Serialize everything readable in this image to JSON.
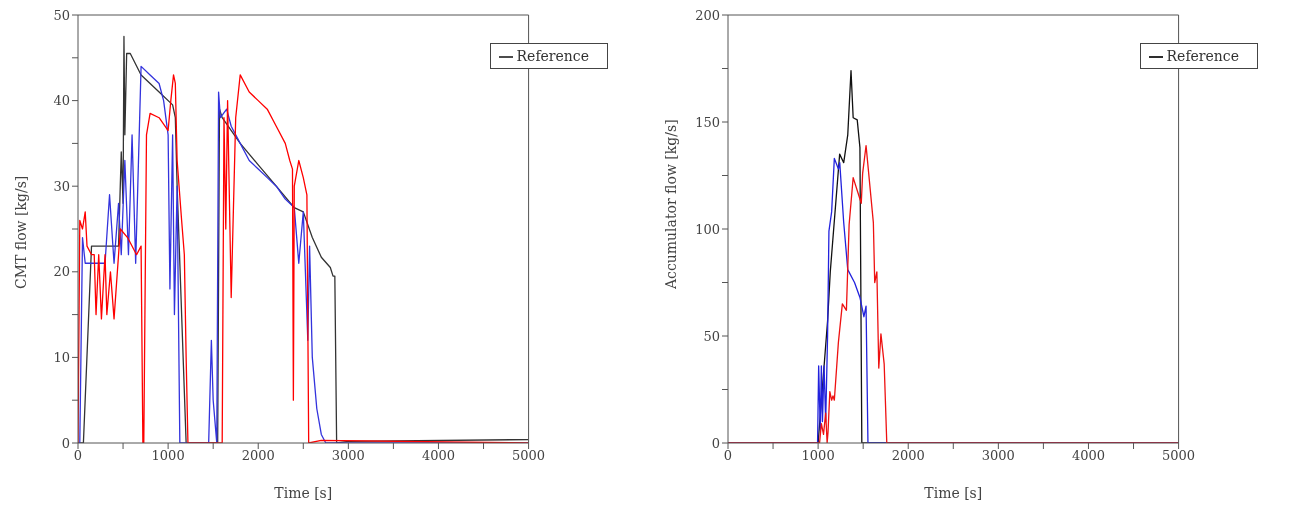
{
  "chart_data": [
    {
      "type": "line",
      "xlabel": "Time [s]",
      "ylabel": "CMT flow [kg/s]",
      "xlim": [
        0,
        5000
      ],
      "ylim": [
        0,
        50
      ],
      "xticks": [
        0,
        {
          "value": 500,
          "label": null
        },
        1000,
        {
          "value": 1500,
          "label": null
        },
        2000,
        {
          "value": 2500,
          "label": null
        },
        3000,
        {
          "value": 3500,
          "label": null
        },
        4000,
        {
          "value": 4500,
          "label": null
        },
        5000
      ],
      "yticks": [
        0,
        {
          "value": 5,
          "label": null
        },
        10,
        {
          "value": 15,
          "label": null
        },
        20,
        {
          "value": 25,
          "label": null
        },
        30,
        {
          "value": 35,
          "label": null
        },
        40,
        {
          "value": 45,
          "label": null
        },
        50
      ],
      "legend": "top right",
      "marker": "none",
      "line_style": "solid",
      "series": [
        {
          "name": "Reference",
          "color": "#333333",
          "x": [
            0,
            60,
            150,
            300,
            450,
            480,
            500,
            510,
            520,
            540,
            580,
            700,
            900,
            1050,
            1080,
            1100,
            1200,
            1550,
            1570,
            1600,
            1800,
            2000,
            2200,
            2400,
            2500,
            2600,
            2700,
            2800,
            2830,
            2850,
            2870,
            3000,
            5000
          ],
          "values": [
            0,
            0,
            23,
            23,
            23,
            34,
            28,
            47.5,
            36,
            45.5,
            45.5,
            43,
            41,
            39.5,
            38,
            30,
            0,
            0,
            39,
            38,
            35,
            32.5,
            30,
            27.5,
            27,
            24,
            21.7,
            20.5,
            19.5,
            19.5,
            0,
            0.2,
            0.4
          ]
        },
        {
          "color": "#3333dd",
          "x": [
            0,
            20,
            50,
            80,
            300,
            350,
            400,
            450,
            480,
            520,
            560,
            600,
            640,
            700,
            800,
            900,
            950,
            1000,
            1020,
            1050,
            1070,
            1100,
            1130,
            1450,
            1480,
            1500,
            1540,
            1560,
            1580,
            1650,
            1700,
            1800,
            1900,
            2000,
            2100,
            2200,
            2300,
            2400,
            2450,
            2500,
            2550,
            2570,
            2600,
            2650,
            2700,
            2750,
            5000
          ],
          "values": [
            0,
            0,
            24,
            21,
            21,
            29,
            21,
            28,
            22,
            33,
            22,
            36,
            21,
            44,
            43,
            42,
            40,
            36,
            18,
            36,
            15,
            30,
            0,
            0,
            12,
            5,
            0,
            41,
            38,
            39,
            37,
            35,
            33,
            32,
            31,
            30,
            28.5,
            27.5,
            21,
            27,
            12,
            23,
            10,
            4,
            1,
            0,
            0
          ]
        },
        {
          "color": "#ff0000",
          "x": [
            0,
            20,
            50,
            80,
            100,
            150,
            180,
            200,
            230,
            260,
            300,
            320,
            360,
            400,
            450,
            470,
            550,
            650,
            700,
            720,
            730,
            760,
            800,
            900,
            1000,
            1030,
            1060,
            1080,
            1100,
            1150,
            1180,
            1200,
            1220,
            1600,
            1620,
            1640,
            1660,
            1700,
            1750,
            1800,
            1900,
            2000,
            2100,
            2200,
            2300,
            2350,
            2380,
            2390,
            2400,
            2450,
            2500,
            2540,
            2560,
            2700,
            5000
          ],
          "values": [
            0,
            26,
            25,
            27,
            23,
            22,
            22,
            15,
            22,
            14.5,
            22,
            15,
            20,
            14.5,
            22,
            25,
            24,
            22,
            23,
            0,
            0,
            36,
            38.5,
            38,
            36.5,
            40,
            43,
            42,
            33,
            26,
            22,
            10,
            0,
            0,
            38,
            25,
            40,
            17,
            38,
            43,
            41,
            40,
            39,
            37,
            35,
            33,
            32,
            5,
            30,
            33,
            31,
            29,
            0,
            0.3,
            0
          ]
        }
      ]
    },
    {
      "type": "line",
      "xlabel": "Time [s]",
      "ylabel": "Accumulator flow [kg/s]",
      "xlim": [
        0,
        5000
      ],
      "ylim": [
        0,
        200
      ],
      "xticks": [
        0,
        {
          "value": 500,
          "label": null
        },
        1000,
        {
          "value": 1500,
          "label": null
        },
        2000,
        {
          "value": 2500,
          "label": null
        },
        3000,
        {
          "value": 3500,
          "label": null
        },
        4000,
        {
          "value": 4500,
          "label": null
        },
        5000
      ],
      "yticks": [
        0,
        {
          "value": 25,
          "label": null
        },
        50,
        {
          "value": 75,
          "label": null
        },
        100,
        {
          "value": 125,
          "label": null
        },
        150,
        {
          "value": 175,
          "label": null
        },
        200
      ],
      "legend": "top right",
      "marker": "none",
      "line_style": "solid",
      "series": [
        {
          "name": "Reference",
          "color": "#111111",
          "x": [
            0,
            1000,
            1105,
            1135,
            1239,
            1284,
            1329,
            1365,
            1389,
            1434,
            1464,
            1485,
            1600,
            5000
          ],
          "values": [
            0,
            0,
            57,
            80,
            135,
            131,
            144,
            174,
            152,
            151,
            138,
            0,
            0,
            0
          ]
        },
        {
          "color": "#2222dd",
          "x": [
            0,
            994,
            1006,
            1024,
            1036,
            1048,
            1066,
            1084,
            1105,
            1120,
            1150,
            1180,
            1225,
            1240,
            1284,
            1329,
            1404,
            1464,
            1508,
            1532,
            1553,
            5000
          ],
          "values": [
            0,
            0,
            36,
            6,
            36,
            10,
            36,
            10,
            50,
            99,
            108,
            133,
            128,
            131,
            103,
            81,
            75,
            68,
            59,
            64,
            0,
            0
          ]
        },
        {
          "color": "#ee1111",
          "x": [
            0,
            1016,
            1036,
            1060,
            1084,
            1100,
            1110,
            1130,
            1150,
            1165,
            1180,
            1225,
            1269,
            1314,
            1344,
            1389,
            1434,
            1479,
            1494,
            1532,
            1613,
            1628,
            1652,
            1673,
            1697,
            1733,
            1762,
            5000
          ],
          "values": [
            0,
            0,
            9,
            4,
            14,
            0,
            5,
            24,
            20,
            22,
            20,
            47,
            65,
            62,
            102,
            124,
            118,
            112,
            126,
            139,
            103,
            75,
            80,
            35,
            51,
            37,
            0,
            0
          ]
        }
      ]
    }
  ]
}
